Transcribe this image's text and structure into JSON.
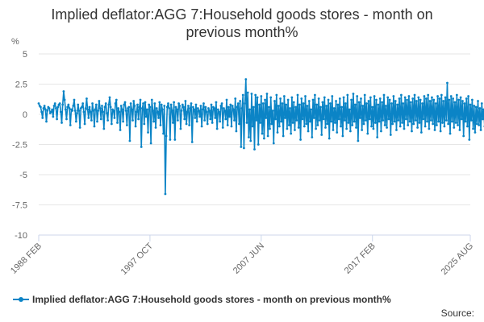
{
  "chart_data": {
    "type": "line",
    "title": "Implied deflator:AGG 7:Household goods stores - month on previous month%",
    "title_lines": [
      "Implied deflator:AGG 7:Household goods stores - month on",
      "previous month%"
    ],
    "ylabel": "%",
    "xlabel": "",
    "ylim": [
      -10,
      5
    ],
    "yticks": [
      5,
      2.5,
      0,
      -2.5,
      -5,
      -7.5,
      -10
    ],
    "ytick_labels": [
      "5",
      "2.5",
      "0",
      "-2.5",
      "-5",
      "-7.5",
      "-10"
    ],
    "x_range": [
      "1988 FEB",
      "2025 AUG"
    ],
    "x_months": 450,
    "xticks": [
      {
        "label": "1988 FEB",
        "month_index": 0
      },
      {
        "label": "1997 OCT",
        "month_index": 116
      },
      {
        "label": "2007 JUN",
        "month_index": 232
      },
      {
        "label": "2017 FEB",
        "month_index": 348
      },
      {
        "label": "2025 AUG",
        "month_index": 450
      }
    ],
    "grid": true,
    "legend_position": "bottom",
    "series": [
      {
        "name": "Implied deflator:AGG 7:Household goods stores - month on previous month%",
        "color": "#0b84c6",
        "start_month": "1988 FEB",
        "values": [
          0.9,
          0.7,
          0.6,
          0.2,
          -0.3,
          0.5,
          0.7,
          0.4,
          -0.6,
          0.3,
          0.6,
          0.5,
          0.1,
          0.2,
          0.4,
          -0.2,
          0.7,
          0.9,
          0.5,
          -0.4,
          0.6,
          0.8,
          0.9,
          0.2,
          -0.7,
          0.8,
          1.9,
          1.2,
          0.4,
          -0.4,
          0.6,
          0.8,
          0.5,
          -0.9,
          0.4,
          0.3,
          0.7,
          1.2,
          0.3,
          -0.6,
          0.1,
          0.8,
          0.3,
          -1.1,
          0.5,
          0.6,
          0.9,
          0.2,
          -0.8,
          0.5,
          1.3,
          0.4,
          -0.3,
          0.6,
          0.2,
          -0.5,
          0.9,
          0.3,
          -1.0,
          0.4,
          0.8,
          -0.6,
          0.3,
          1.1,
          0.5,
          -0.4,
          0.7,
          0.2,
          -1.2,
          0.6,
          0.9,
          0.1,
          -0.5,
          0.8,
          1.4,
          0.6,
          -0.8,
          0.4,
          0.3,
          -0.3,
          0.9,
          1.2,
          -0.7,
          0.5,
          0.2,
          -1.3,
          0.7,
          0.4,
          -0.6,
          0.8,
          1.0,
          0.3,
          -0.9,
          0.5,
          0.6,
          -2.2,
          0.9,
          0.4,
          -0.5,
          1.1,
          0.7,
          -1.0,
          0.2,
          0.8,
          -0.4,
          0.6,
          1.2,
          -2.7,
          0.5,
          0.9,
          -0.8,
          1.0,
          -0.2,
          0.4,
          -1.5,
          0.8,
          0.6,
          -2.4,
          1.2,
          0.3,
          -0.6,
          0.9,
          -1.1,
          0.5,
          0.2,
          -0.3,
          1.0,
          -0.9,
          0.8,
          0.4,
          -1.6,
          0.7,
          -6.6,
          -1.8,
          0.6,
          0.9,
          0.5,
          -2.1,
          0.8,
          0.3,
          -0.7,
          1.0,
          -2.1,
          0.6,
          0.4,
          -0.5,
          0.9,
          0.7,
          -1.2,
          0.3,
          0.8,
          0.6,
          -0.4,
          1.1,
          -0.8,
          0.2,
          0.7,
          -0.9,
          0.5,
          0.9,
          -2.3,
          0.6,
          0.4,
          -0.3,
          0.8,
          -0.6,
          0.5,
          0.3,
          -0.2,
          0.7,
          -1.0,
          0.4,
          0.9,
          -0.5,
          0.6,
          0.2,
          -0.8,
          0.5,
          0.3,
          -0.4,
          0.8,
          -0.7,
          0.6,
          0.5,
          -0.3,
          1.0,
          -1.2,
          0.4,
          0.2,
          -0.6,
          0.7,
          0.9,
          -1.1,
          0.5,
          0.3,
          -0.4,
          1.2,
          -0.9,
          0.6,
          -0.2,
          0.8,
          -1.0,
          0.7,
          0.4,
          -0.5,
          1.3,
          -1.4,
          0.6,
          0.9,
          -0.8,
          1.1,
          -2.7,
          0.5,
          1.6,
          -2.8,
          0.9,
          2.9,
          -0.7,
          1.8,
          -1.9,
          0.4,
          -2.2,
          1.7,
          -1.0,
          0.6,
          -2.9,
          1.6,
          -0.5,
          1.4,
          -2.5,
          0.8,
          -0.7,
          1.5,
          -1.6,
          0.9,
          -2.0,
          1.2,
          -0.3,
          1.7,
          -1.8,
          0.6,
          -1.2,
          1.4,
          -0.8,
          0.3,
          -2.4,
          1.1,
          -0.4,
          1.6,
          -1.5,
          0.7,
          -1.0,
          1.3,
          -0.6,
          0.9,
          -1.8,
          1.5,
          -0.3,
          0.8,
          -1.2,
          1.2,
          -0.9,
          0.5,
          -1.6,
          1.4,
          -0.7,
          1.0,
          -1.3,
          0.6,
          -0.5,
          1.6,
          -1.1,
          0.8,
          -2.1,
          1.3,
          -0.4,
          0.9,
          -1.0,
          1.5,
          -0.8,
          0.7,
          -1.4,
          1.1,
          -0.6,
          0.4,
          -1.9,
          1.2,
          -0.3,
          1.6,
          -1.2,
          0.8,
          -0.9,
          1.3,
          -0.5,
          0.6,
          -1.7,
          1.0,
          -0.4,
          1.4,
          -1.1,
          0.7,
          -0.8,
          1.2,
          -2.0,
          0.9,
          -0.6,
          1.5,
          -1.3,
          0.5,
          -0.7,
          1.1,
          -1.5,
          0.8,
          -0.4,
          1.3,
          -1.0,
          0.6,
          -1.8,
          1.4,
          -0.5,
          0.9,
          -1.2,
          1.6,
          -0.7,
          0.4,
          -1.4,
          1.2,
          -0.9,
          1.7,
          -0.6,
          0.8,
          -1.1,
          1.5,
          -2.2,
          1.0,
          -0.3,
          1.3,
          -1.3,
          0.7,
          -0.8,
          1.6,
          -0.5,
          0.9,
          -1.6,
          1.1,
          -0.4,
          1.4,
          -1.0,
          0.6,
          -1.2,
          1.5,
          -0.7,
          1.2,
          -1.9,
          0.8,
          -0.6,
          1.3,
          -1.4,
          1.0,
          -0.5,
          1.6,
          -0.9,
          0.7,
          -1.1,
          1.4,
          -0.4,
          1.2,
          -1.7,
          0.9,
          -0.8,
          1.5,
          -0.6,
          1.1,
          -1.3,
          0.8,
          -0.5,
          1.3,
          -1.0,
          1.6,
          -0.7,
          0.9,
          -1.2,
          1.4,
          -0.4,
          1.2,
          -0.9,
          1.5,
          -0.6,
          1.0,
          -1.4,
          1.3,
          -0.8,
          1.6,
          -0.5,
          1.1,
          -1.1,
          1.4,
          -0.7,
          1.2,
          -1.5,
          0.9,
          -0.4,
          1.5,
          -1.0,
          1.3,
          -0.6,
          1.6,
          -1.2,
          1.1,
          -0.5,
          1.4,
          -0.8,
          1.2,
          -1.3,
          0.9,
          -0.9,
          1.5,
          -0.6,
          1.3,
          -1.4,
          1.6,
          -0.7,
          1.1,
          -1.0,
          1.4,
          -0.5,
          2.6,
          -0.8,
          1.2,
          -1.6,
          1.5,
          -0.6,
          1.3,
          -1.1,
          1.0,
          -0.7,
          1.6,
          -0.9,
          1.2,
          -1.3,
          1.4,
          -0.4,
          1.1,
          -1.8,
          0.9,
          -0.6,
          1.3,
          -1.0,
          1.5,
          -2.1,
          0.8,
          -0.5,
          1.2,
          -1.2,
          0.7,
          -1.5,
          0.6,
          -0.8,
          1.1,
          -0.9,
          0.5,
          -1.3,
          0.9,
          -0.4,
          0.4,
          -1.0,
          0.7,
          -1.4,
          0.3,
          -0.2,
          0.6,
          -0.8,
          0.9,
          -0.5,
          0.4,
          -1.5,
          1.0,
          0.9
        ]
      }
    ]
  },
  "legend": {
    "label": "Implied deflator:AGG 7:Household goods stores - month on previous month%"
  },
  "footer": {
    "source_label": "Source:"
  }
}
